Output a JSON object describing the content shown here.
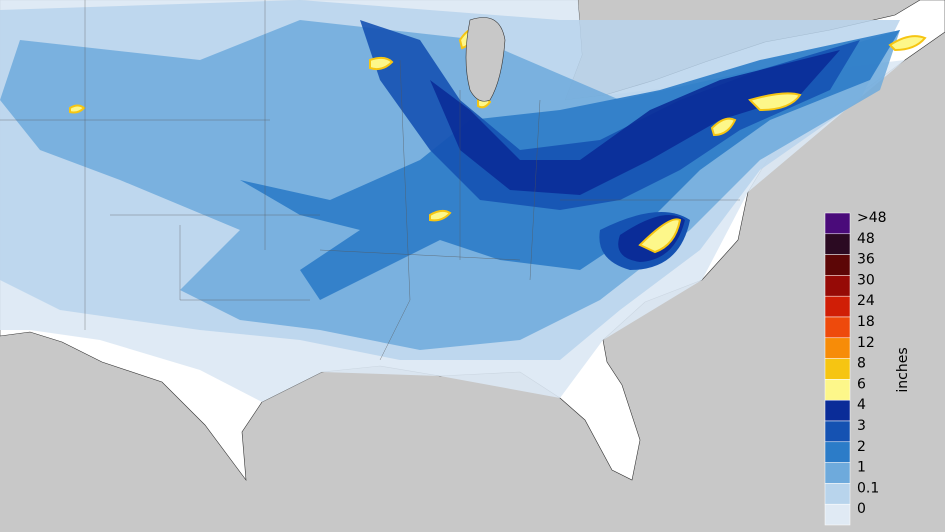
{
  "legend": {
    "unit": "inches",
    "items": [
      {
        "label": ">48",
        "color": "#4a0b7a"
      },
      {
        "label": "48",
        "color": "#2b0a22"
      },
      {
        "label": "36",
        "color": "#5c0606"
      },
      {
        "label": "30",
        "color": "#960a06"
      },
      {
        "label": "24",
        "color": "#d01e06"
      },
      {
        "label": "18",
        "color": "#ee4a0c"
      },
      {
        "label": "12",
        "color": "#f78c08"
      },
      {
        "label": "8",
        "color": "#f6c512"
      },
      {
        "label": "6",
        "color": "#fdf78a"
      },
      {
        "label": "4",
        "color": "#0a2c98"
      },
      {
        "label": "3",
        "color": "#1552b2"
      },
      {
        "label": "2",
        "color": "#2c7cc8"
      },
      {
        "label": "1",
        "color": "#6eaadc"
      },
      {
        "label": "0.1",
        "color": "#b8d4ec"
      },
      {
        "label": "0",
        "color": "#e0eaf4"
      }
    ]
  }
}
